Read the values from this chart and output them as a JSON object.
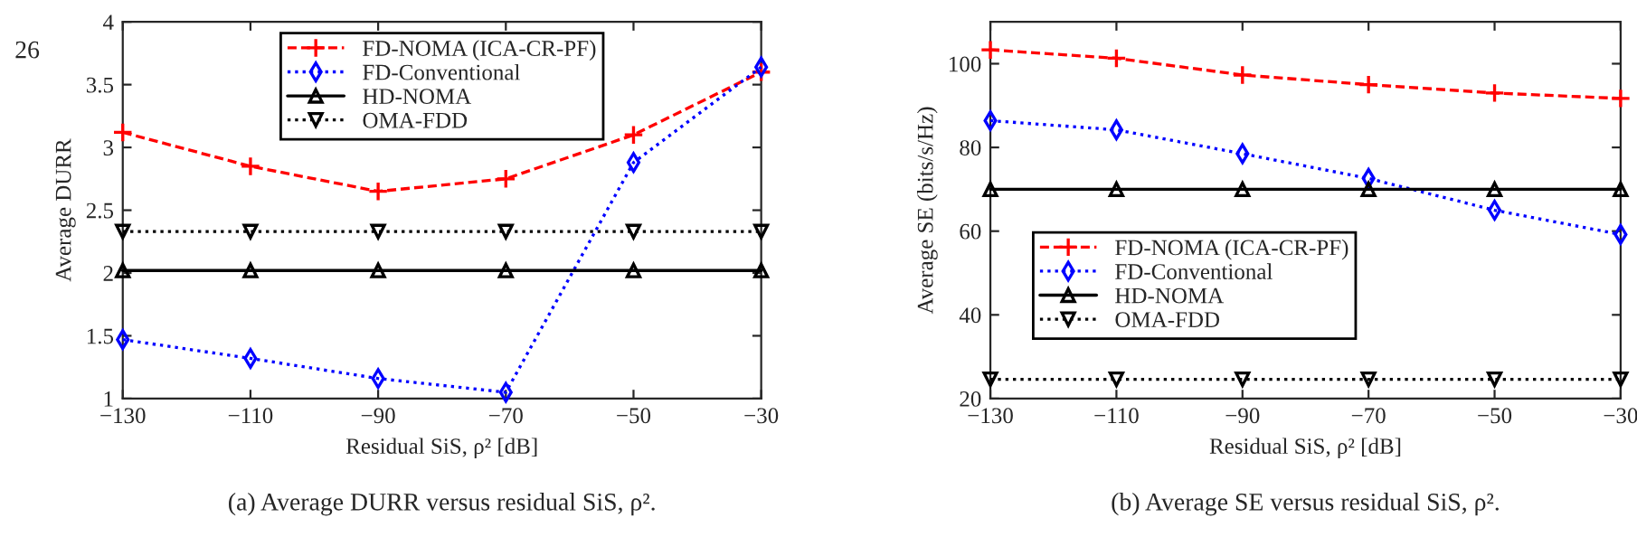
{
  "chart_data": [
    {
      "type": "line",
      "xlabel": "Residual SiS, ρ² [dB]",
      "ylabel": "Average DURR",
      "annotations": [
        "(a) Average DURR versus residual SiS, ρ².",
        "26"
      ],
      "x": [
        -130,
        -110,
        -90,
        -70,
        -50,
        -30
      ],
      "xlim": [
        -130,
        -30
      ],
      "xticks": [
        {
          "value": -130,
          "label": "−130"
        },
        {
          "value": -110,
          "label": "−110"
        },
        {
          "value": -90,
          "label": "−90"
        },
        {
          "value": -70,
          "label": "−70"
        },
        {
          "value": -50,
          "label": "−50"
        },
        {
          "value": -30,
          "label": "−30"
        }
      ],
      "ylim": [
        1,
        4
      ],
      "yticks": [
        1,
        1.5,
        2,
        2.5,
        3,
        3.5,
        4
      ],
      "grid": false,
      "legend": "top center",
      "series": [
        {
          "name": "FD-NOMA (ICA-CR-PF)",
          "color": "#ff0000",
          "marker": "cross",
          "line_style": "dashed",
          "values": [
            3.12,
            2.85,
            2.65,
            2.75,
            3.1,
            3.6
          ]
        },
        {
          "name": "FD-Conventional",
          "color": "#0000ff",
          "marker": "diamond",
          "line_style": "dotted",
          "values": [
            1.47,
            1.32,
            1.16,
            1.05,
            2.88,
            3.64
          ]
        },
        {
          "name": "HD-NOMA",
          "color": "#000000",
          "marker": "triangle",
          "line_style": "solid",
          "values": [
            2.02,
            2.02,
            2.02,
            2.02,
            2.02,
            2.02
          ]
        },
        {
          "name": "OMA-FDD",
          "color": "#000000",
          "marker": "triangle_down",
          "line_style": "dotted",
          "values": [
            2.33,
            2.33,
            2.33,
            2.33,
            2.33,
            2.33
          ]
        }
      ]
    },
    {
      "type": "line",
      "xlabel": "Residual SiS, ρ² [dB]",
      "ylabel": "Average SE (bits/s/Hz)",
      "annotations": [
        "(b) Average SE versus residual SiS, ρ²."
      ],
      "x": [
        -130,
        -110,
        -90,
        -70,
        -50,
        -30
      ],
      "xlim": [
        -130,
        -30
      ],
      "xticks": [
        {
          "value": -130,
          "label": "−130"
        },
        {
          "value": -110,
          "label": "−110"
        },
        {
          "value": -90,
          "label": "−90"
        },
        {
          "value": -70,
          "label": "−70"
        },
        {
          "value": -50,
          "label": "−50"
        },
        {
          "value": -30,
          "label": "−30"
        }
      ],
      "ylim": [
        20,
        110
      ],
      "yticks": [
        20,
        40,
        60,
        80,
        100
      ],
      "grid": false,
      "legend": "center left",
      "series": [
        {
          "name": "FD-NOMA (ICA-CR-PF)",
          "color": "#ff0000",
          "marker": "cross",
          "line_style": "dashed",
          "values": [
            103.3,
            101.3,
            97.3,
            95,
            93,
            91.7
          ]
        },
        {
          "name": "FD-Conventional",
          "color": "#0000ff",
          "marker": "diamond",
          "line_style": "dotted",
          "values": [
            86.4,
            84.2,
            78.5,
            72.6,
            65,
            59.2
          ]
        },
        {
          "name": "HD-NOMA",
          "color": "#000000",
          "marker": "triangle",
          "line_style": "solid",
          "values": [
            70,
            70,
            70,
            70,
            70,
            70
          ]
        },
        {
          "name": "OMA-FDD",
          "color": "#000000",
          "marker": "triangle_down",
          "line_style": "dotted",
          "values": [
            24.6,
            24.6,
            24.6,
            24.6,
            24.6,
            24.6
          ]
        }
      ]
    }
  ]
}
